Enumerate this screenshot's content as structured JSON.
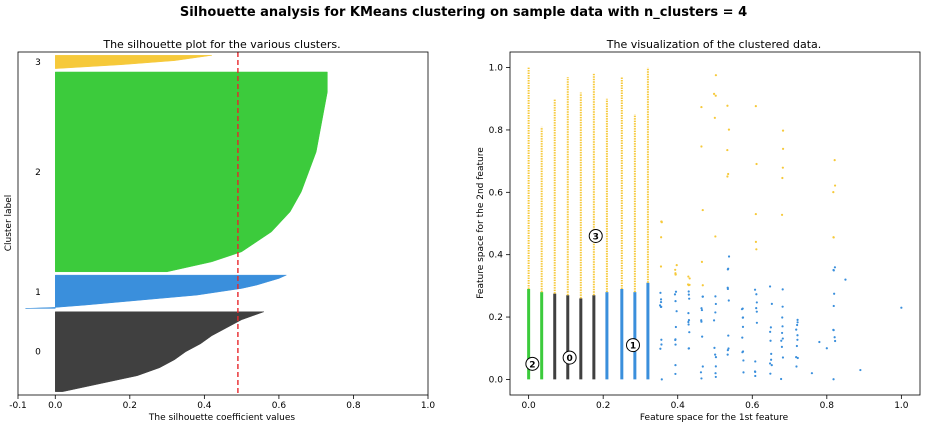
{
  "figure": {
    "suptitle": "Silhouette analysis for KMeans clustering on sample data with n_clusters = 4"
  },
  "colors": {
    "cluster_0": "#404040",
    "cluster_1": "#3a8fdc",
    "cluster_2": "#3ccb3c",
    "cluster_3": "#f6c93a",
    "average_line": "#e8262a"
  },
  "chart_data": [
    {
      "type": "area",
      "title": "The silhouette plot for the various clusters.",
      "xlabel": "The silhouette coefficient values",
      "ylabel": "Cluster label",
      "xlim": [
        -0.1,
        1.0
      ],
      "xticks": [
        "-0.1",
        "0.0",
        "0.2",
        "0.4",
        "0.6",
        "0.8",
        "1.0"
      ],
      "xtick_values": [
        -0.1,
        0.0,
        0.2,
        0.4,
        0.6,
        0.8,
        1.0
      ],
      "average_silhouette": 0.49,
      "clusters": [
        {
          "label": "0",
          "color_key": "cluster_0",
          "size": 240,
          "profile": [
            [
              0.0,
              0.02
            ],
            [
              0.1,
              0.12
            ],
            [
              0.2,
              0.22
            ],
            [
              0.3,
              0.28
            ],
            [
              0.4,
              0.32
            ],
            [
              0.5,
              0.35
            ],
            [
              0.6,
              0.39
            ],
            [
              0.7,
              0.42
            ],
            [
              0.8,
              0.46
            ],
            [
              0.9,
              0.5
            ],
            [
              0.95,
              0.53
            ],
            [
              1.0,
              0.56
            ]
          ]
        },
        {
          "label": "1",
          "color_key": "cluster_1",
          "size": 100,
          "profile": [
            [
              0.0,
              -0.08
            ],
            [
              0.03,
              0.0
            ],
            [
              0.1,
              0.08
            ],
            [
              0.2,
              0.18
            ],
            [
              0.3,
              0.28
            ],
            [
              0.4,
              0.38
            ],
            [
              0.5,
              0.44
            ],
            [
              0.6,
              0.5
            ],
            [
              0.7,
              0.54
            ],
            [
              0.8,
              0.57
            ],
            [
              0.9,
              0.6
            ],
            [
              1.0,
              0.62
            ]
          ]
        },
        {
          "label": "2",
          "color_key": "cluster_2",
          "size": 600,
          "profile": [
            [
              0.0,
              0.3
            ],
            [
              0.05,
              0.42
            ],
            [
              0.1,
              0.5
            ],
            [
              0.2,
              0.58
            ],
            [
              0.3,
              0.63
            ],
            [
              0.4,
              0.66
            ],
            [
              0.5,
              0.68
            ],
            [
              0.6,
              0.7
            ],
            [
              0.7,
              0.71
            ],
            [
              0.8,
              0.72
            ],
            [
              0.9,
              0.73
            ],
            [
              1.0,
              0.73
            ]
          ]
        },
        {
          "label": "3",
          "color_key": "cluster_3",
          "size": 40,
          "profile": [
            [
              0.0,
              0.0
            ],
            [
              0.3,
              0.18
            ],
            [
              0.6,
              0.32
            ],
            [
              1.0,
              0.42
            ]
          ]
        }
      ]
    },
    {
      "type": "scatter",
      "title": "The visualization of the clustered data.",
      "xlabel": "Feature space for the 1st feature",
      "ylabel": "Feature space for the 2nd feature",
      "xlim": [
        -0.05,
        1.05
      ],
      "ylim": [
        -0.05,
        1.05
      ],
      "xticks": [
        "0.0",
        "0.2",
        "0.4",
        "0.6",
        "0.8",
        "1.0"
      ],
      "xtick_values": [
        0.0,
        0.2,
        0.4,
        0.6,
        0.8,
        1.0
      ],
      "yticks": [
        "0.0",
        "0.2",
        "0.4",
        "0.6",
        "0.8",
        "1.0"
      ],
      "ytick_values": [
        0.0,
        0.2,
        0.4,
        0.6,
        0.8,
        1.0
      ],
      "columns": [
        {
          "x": 0.0,
          "cut": 0.29,
          "low": "cluster_2",
          "high": "cluster_3",
          "top": 1.0,
          "dense": true
        },
        {
          "x": 0.035,
          "cut": 0.28,
          "low": "cluster_2",
          "high": "cluster_3",
          "top": 0.81,
          "dense": true
        },
        {
          "x": 0.07,
          "cut": 0.275,
          "low": "cluster_0",
          "high": "cluster_3",
          "top": 0.9,
          "dense": true
        },
        {
          "x": 0.105,
          "cut": 0.27,
          "low": "cluster_0",
          "high": "cluster_3",
          "top": 0.97,
          "dense": true
        },
        {
          "x": 0.14,
          "cut": 0.26,
          "low": "cluster_0",
          "high": "cluster_3",
          "top": 0.92,
          "dense": true
        },
        {
          "x": 0.175,
          "cut": 0.27,
          "low": "cluster_0",
          "high": "cluster_3",
          "top": 0.98,
          "dense": true
        },
        {
          "x": 0.21,
          "cut": 0.28,
          "low": "cluster_1",
          "high": "cluster_3",
          "top": 0.9,
          "dense": true
        },
        {
          "x": 0.25,
          "cut": 0.29,
          "low": "cluster_1",
          "high": "cluster_3",
          "top": 0.97,
          "dense": true
        },
        {
          "x": 0.285,
          "cut": 0.28,
          "low": "cluster_1",
          "high": "cluster_3",
          "top": 0.85,
          "dense": true
        },
        {
          "x": 0.32,
          "cut": 0.31,
          "low": "cluster_1",
          "high": "cluster_3",
          "top": 1.0,
          "dense": true
        },
        {
          "x": 0.355,
          "cut": 0.34,
          "low": "cluster_1",
          "high": "cluster_3",
          "top": 0.52,
          "dense": false
        },
        {
          "x": 0.395,
          "cut": 0.3,
          "low": "cluster_1",
          "high": "cluster_3",
          "top": 0.4,
          "dense": false
        },
        {
          "x": 0.43,
          "cut": 0.3,
          "low": "cluster_1",
          "high": "cluster_3",
          "top": 0.33,
          "dense": false
        },
        {
          "x": 0.465,
          "cut": 0.3,
          "low": "cluster_1",
          "high": "cluster_3",
          "top": 0.95,
          "dense": false
        },
        {
          "x": 0.5,
          "cut": 0.38,
          "low": "cluster_1",
          "high": "cluster_3",
          "top": 0.98,
          "dense": false
        },
        {
          "x": 0.535,
          "cut": 0.4,
          "low": "cluster_1",
          "high": "cluster_3",
          "top": 0.92,
          "dense": false
        },
        {
          "x": 0.575,
          "cut": 0.3,
          "low": "cluster_1",
          "high": "cluster_3",
          "top": 0.3,
          "dense": false
        },
        {
          "x": 0.61,
          "cut": 0.3,
          "low": "cluster_1",
          "high": "cluster_3",
          "top": 0.88,
          "dense": false
        },
        {
          "x": 0.65,
          "cut": 0.3,
          "low": "cluster_1",
          "high": "cluster_3",
          "top": 0.3,
          "dense": false
        },
        {
          "x": 0.68,
          "cut": 0.3,
          "low": "cluster_1",
          "high": "cluster_3",
          "top": 0.82,
          "dense": false
        },
        {
          "x": 0.72,
          "cut": 0.3,
          "low": "cluster_1",
          "high": "cluster_3",
          "top": 0.2,
          "dense": false
        },
        {
          "x": 0.82,
          "cut": 0.4,
          "low": "cluster_1",
          "high": "cluster_3",
          "top": 0.72,
          "dense": false
        }
      ],
      "centers": [
        {
          "label": "0",
          "x": 0.11,
          "y": 0.07
        },
        {
          "label": "1",
          "x": 0.28,
          "y": 0.11
        },
        {
          "label": "2",
          "x": 0.01,
          "y": 0.05
        },
        {
          "label": "3",
          "x": 0.18,
          "y": 0.46
        }
      ]
    }
  ]
}
